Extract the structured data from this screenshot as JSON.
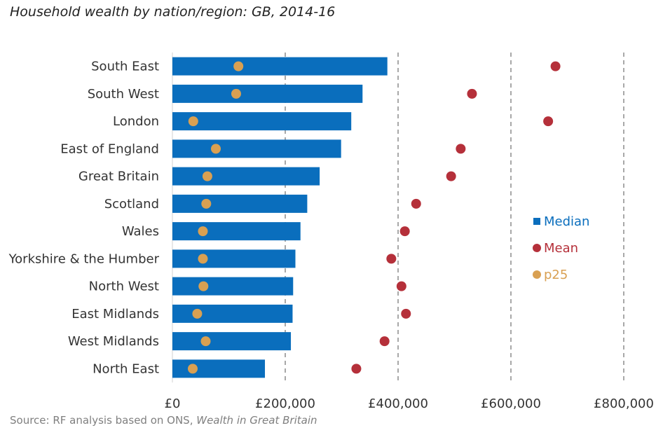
{
  "title": "Household wealth by nation/region: GB, 2014-16",
  "source": {
    "prefix": "Source: RF analysis based on ONS, ",
    "italic": "Wealth in Great Britain"
  },
  "colors": {
    "median": "#0a6ebd",
    "mean": "#b5303a",
    "p25": "#d9a052",
    "grid": "#8c8c8c",
    "text": "#333333"
  },
  "chart_data": {
    "type": "bar",
    "orientation": "horizontal",
    "categories": [
      "South East",
      "South West",
      "London",
      "East of England",
      "Great Britain",
      "Scotland",
      "Wales",
      "Yorkshire & the Humber",
      "North West",
      "East Midlands",
      "West Midlands",
      "North East"
    ],
    "series": [
      {
        "name": "Median",
        "mark": "bar",
        "color": "#0a6ebd",
        "values": [
          381000,
          337000,
          317000,
          299000,
          261000,
          239000,
          227000,
          218000,
          214000,
          213000,
          210000,
          164000
        ]
      },
      {
        "name": "Mean",
        "mark": "dot",
        "color": "#b5303a",
        "values": [
          679000,
          531000,
          666000,
          511000,
          494000,
          432000,
          412000,
          388000,
          406000,
          414000,
          376000,
          326000
        ]
      },
      {
        "name": "p25",
        "mark": "dot",
        "color": "#d9a052",
        "values": [
          117000,
          113000,
          37000,
          77000,
          62000,
          60000,
          54000,
          54000,
          55000,
          44000,
          59000,
          36000
        ]
      }
    ],
    "xlim": [
      0,
      800000
    ],
    "xticks": [
      0,
      200000,
      400000,
      600000,
      800000
    ],
    "xtick_labels": [
      "£0",
      "£200,000",
      "£400,000",
      "£600,000",
      "£800,000"
    ],
    "grid": "vertical dashed",
    "legend_position": "right"
  }
}
